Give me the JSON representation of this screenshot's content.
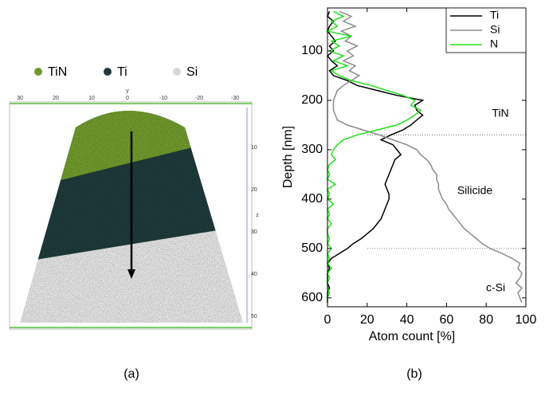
{
  "panel_a": {
    "legend": [
      {
        "label": "TiN",
        "color": "#6f9a2c"
      },
      {
        "label": "Ti",
        "color": "#1e3a3a"
      },
      {
        "label": "Si",
        "color": "#d8d8d8"
      }
    ],
    "top_ticks": [
      30,
      20,
      10,
      0,
      -10,
      -20,
      -30
    ],
    "top_axis_label": "y",
    "side_ticks": [
      10,
      20,
      30,
      40,
      50
    ],
    "side_axis_label": "z",
    "caption": "(a)"
  },
  "chart_data": {
    "type": "line",
    "orientation": "depth-vertical",
    "ylabel": "Depth [nm]",
    "xlabel": "Atom count [%]",
    "y": [
      20,
      30,
      40,
      50,
      60,
      70,
      80,
      90,
      100,
      110,
      120,
      130,
      140,
      150,
      160,
      170,
      180,
      190,
      200,
      210,
      220,
      230,
      240,
      250,
      260,
      270,
      280,
      290,
      300,
      310,
      320,
      330,
      340,
      350,
      360,
      370,
      380,
      390,
      400,
      410,
      420,
      430,
      440,
      450,
      460,
      470,
      480,
      490,
      500,
      510,
      520,
      530,
      540,
      550,
      560,
      570,
      580,
      590,
      600,
      610
    ],
    "ylim": [
      13,
      618
    ],
    "y_inverted": true,
    "yticks": [
      100,
      200,
      300,
      400,
      500,
      600
    ],
    "xlim": [
      0,
      100
    ],
    "xticks": [
      0,
      20,
      40,
      60,
      80,
      100
    ],
    "series": [
      {
        "name": "Ti",
        "color": "#000000",
        "values": [
          1,
          0,
          3,
          1,
          0,
          2,
          4,
          1,
          3,
          0,
          2,
          5,
          1,
          3,
          10,
          15,
          25,
          35,
          48,
          44,
          45,
          48,
          45,
          42,
          38,
          32,
          27,
          33,
          35,
          37,
          34,
          33,
          32,
          31,
          30,
          29,
          30,
          31,
          31,
          30,
          29,
          28,
          27,
          25,
          23,
          20,
          17,
          13,
          10,
          6,
          2,
          0,
          1,
          0,
          0,
          0,
          1,
          0,
          0,
          0
        ]
      },
      {
        "name": "Si",
        "color": "#8c8c8c",
        "values": [
          6,
          12,
          8,
          14,
          7,
          12,
          9,
          15,
          10,
          13,
          8,
          14,
          11,
          16,
          12,
          8,
          5,
          4,
          3,
          3,
          3,
          4,
          5,
          10,
          18,
          26,
          33,
          40,
          45,
          47,
          50,
          52,
          53,
          55,
          55,
          56,
          56,
          57,
          58,
          60,
          61,
          63,
          65,
          67,
          69,
          72,
          75,
          78,
          82,
          88,
          93,
          97,
          96,
          98,
          97,
          95,
          98,
          96,
          97,
          98
        ]
      },
      {
        "name": "N",
        "color": "#22e01a",
        "values": [
          3,
          8,
          2,
          5,
          0,
          12,
          2,
          6,
          1,
          8,
          3,
          10,
          2,
          6,
          12,
          22,
          30,
          38,
          44,
          42,
          47,
          44,
          40,
          35,
          25,
          15,
          8,
          5,
          3,
          2,
          4,
          1,
          0,
          1,
          0,
          4,
          0,
          1,
          0,
          3,
          0,
          1,
          0,
          2,
          0,
          0,
          1,
          0,
          2,
          0,
          1,
          0,
          2,
          0,
          1,
          0,
          0,
          1,
          0,
          0
        ]
      }
    ],
    "reference_lines": [
      270,
      500
    ],
    "annotations": [
      "TiN",
      "Silicide",
      "c-Si"
    ],
    "legend": "upper right",
    "caption": "(b)"
  }
}
